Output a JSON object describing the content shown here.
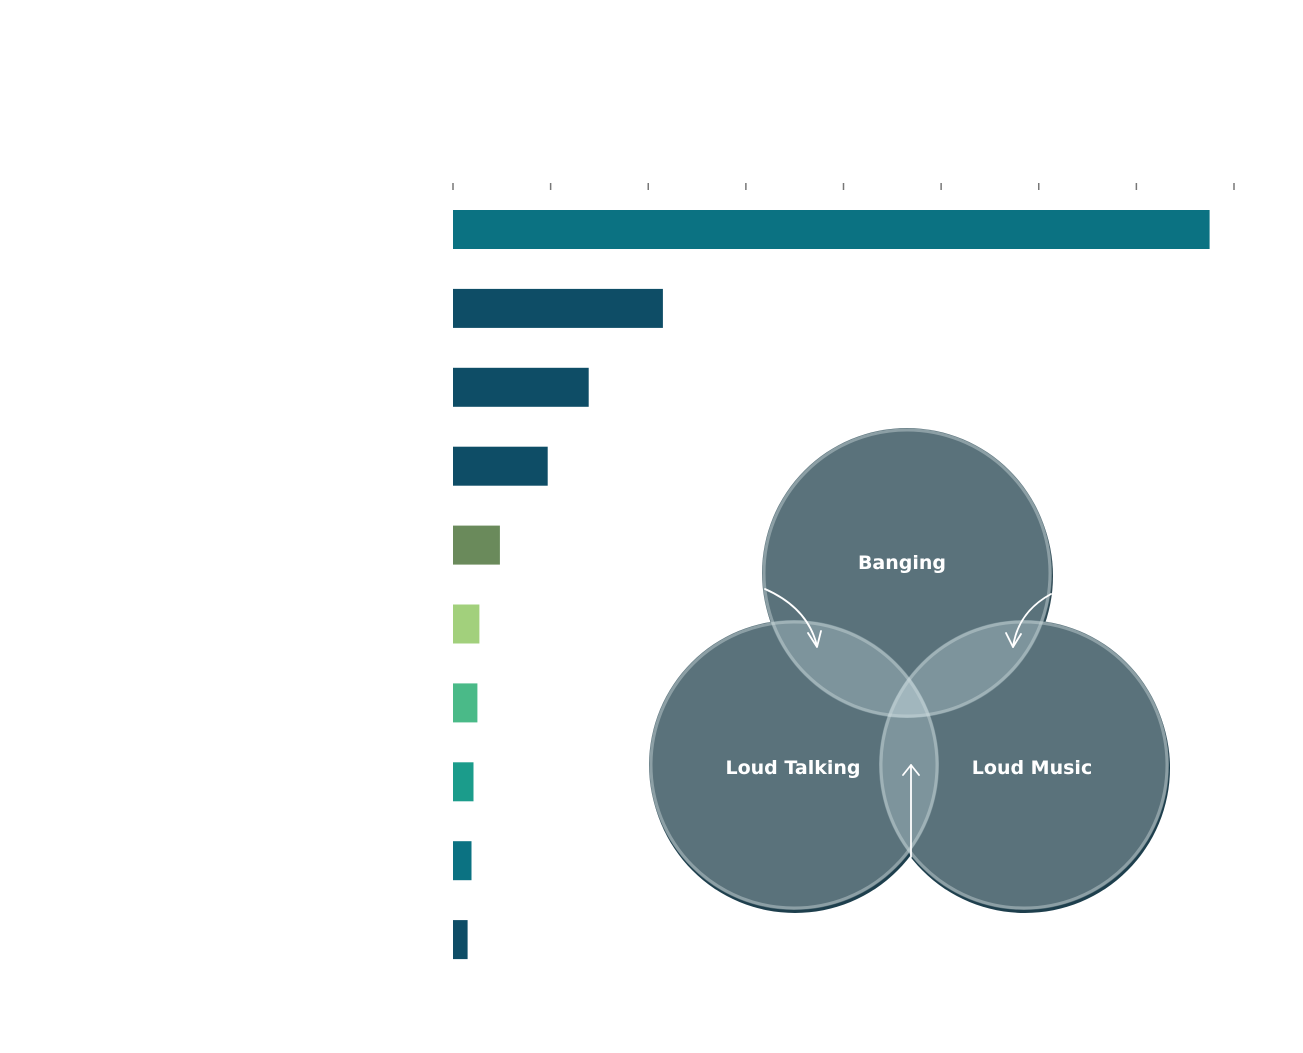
{
  "chart_data": {
    "type": "bar",
    "orientation": "horizontal",
    "x_ticks": 9,
    "values": [
      7.75,
      2.15,
      1.39,
      0.97,
      0.48,
      0.27,
      0.25,
      0.21,
      0.19,
      0.15
    ],
    "colors": [
      "#0b7282",
      "#0e4d66",
      "#0e4d66",
      "#0e4d66",
      "#6a8a5b",
      "#a2d07c",
      "#4aba88",
      "#1b9c8b",
      "#0b7282",
      "#0e4d66"
    ],
    "xlim": [
      0,
      8
    ],
    "grid": false
  },
  "venn": {
    "circle_color": "#5a727b",
    "top_label": "Banging",
    "left_label": "Loud Talking",
    "right_label": "Loud Music"
  }
}
